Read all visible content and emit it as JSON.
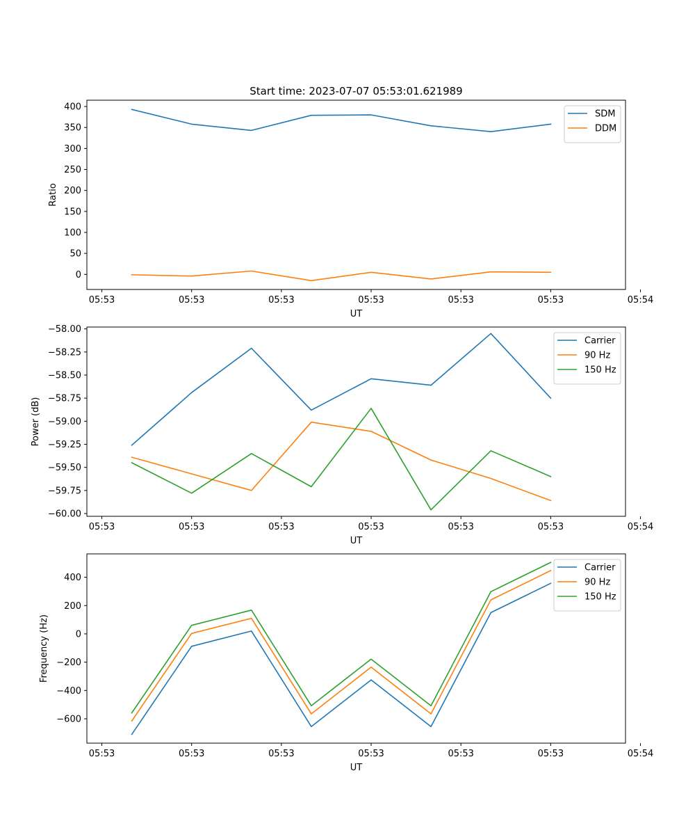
{
  "figure_title": "Start time: 2023-07-07 05:53:01.621989",
  "colors": {
    "blue": "#1f77b4",
    "orange": "#ff7f0e",
    "green": "#2ca02c",
    "axis": "#000000"
  },
  "chart_data": [
    {
      "type": "line",
      "title": "Start time: 2023-07-07 05:53:01.621989",
      "xlabel": "UT",
      "ylabel": "Ratio",
      "x": [
        1,
        2,
        3,
        4,
        5,
        6,
        7,
        8
      ],
      "xlim": [
        0.25,
        9.25
      ],
      "xticks": [
        0.5,
        2,
        3.5,
        5,
        6.5,
        8,
        9.5
      ],
      "xtick_labels": [
        "05:53",
        "05:53",
        "05:53",
        "05:53",
        "05:53",
        "05:53",
        "05:54"
      ],
      "ylim": [
        -36,
        415
      ],
      "yticks": [
        0,
        50,
        100,
        150,
        200,
        250,
        300,
        350,
        400
      ],
      "ytick_labels": [
        "0",
        "50",
        "100",
        "150",
        "200",
        "250",
        "300",
        "350",
        "400"
      ],
      "legend": "top-right",
      "series": [
        {
          "name": "SDM",
          "color": "#1f77b4",
          "values": [
            393,
            358,
            343,
            379,
            380,
            354,
            340,
            358
          ]
        },
        {
          "name": "DDM",
          "color": "#ff7f0e",
          "values": [
            -1,
            -4,
            8,
            -15,
            5,
            -11,
            6,
            5
          ]
        }
      ]
    },
    {
      "type": "line",
      "title": "",
      "xlabel": "UT",
      "ylabel": "Power (dB)",
      "x": [
        1,
        2,
        3,
        4,
        5,
        6,
        7,
        8
      ],
      "xlim": [
        0.25,
        9.25
      ],
      "xticks": [
        0.5,
        2,
        3.5,
        5,
        6.5,
        8,
        9.5
      ],
      "xtick_labels": [
        "05:53",
        "05:53",
        "05:53",
        "05:53",
        "05:53",
        "05:53",
        "05:54"
      ],
      "ylim": [
        -60.03,
        -57.98
      ],
      "yticks": [
        -60.0,
        -59.75,
        -59.5,
        -59.25,
        -59.0,
        -58.75,
        -58.5,
        -58.25,
        -58.0
      ],
      "ytick_labels": [
        "−60.00",
        "−59.75",
        "−59.50",
        "−59.25",
        "−59.00",
        "−58.75",
        "−58.50",
        "−58.25",
        "−58.00"
      ],
      "legend": "top-right",
      "series": [
        {
          "name": "Carrier",
          "color": "#1f77b4",
          "values": [
            -59.26,
            -58.69,
            -58.21,
            -58.88,
            -58.54,
            -58.61,
            -58.05,
            -58.75
          ]
        },
        {
          "name": "90 Hz",
          "color": "#ff7f0e",
          "values": [
            -59.39,
            -59.57,
            -59.75,
            -59.01,
            -59.11,
            -59.42,
            -59.62,
            -59.86
          ]
        },
        {
          "name": "150 Hz",
          "color": "#2ca02c",
          "values": [
            -59.45,
            -59.78,
            -59.35,
            -59.71,
            -58.86,
            -59.96,
            -59.32,
            -59.6
          ]
        }
      ]
    },
    {
      "type": "line",
      "title": "",
      "xlabel": "UT",
      "ylabel": "Frequency (Hz)",
      "x": [
        1,
        2,
        3,
        4,
        5,
        6,
        7,
        8
      ],
      "xlim": [
        0.25,
        9.25
      ],
      "xticks": [
        0.5,
        2,
        3.5,
        5,
        6.5,
        8,
        9.5
      ],
      "xtick_labels": [
        "05:53",
        "05:53",
        "05:53",
        "05:53",
        "05:53",
        "05:53",
        "05:54"
      ],
      "ylim": [
        -772,
        565
      ],
      "yticks": [
        -600,
        -400,
        -200,
        0,
        200,
        400
      ],
      "ytick_labels": [
        "−600",
        "−400",
        "−200",
        "0",
        "200",
        "400"
      ],
      "legend": "top-right",
      "series": [
        {
          "name": "Carrier",
          "color": "#1f77b4",
          "values": [
            -710,
            -88,
            20,
            -655,
            -325,
            -655,
            150,
            357
          ]
        },
        {
          "name": "90 Hz",
          "color": "#ff7f0e",
          "values": [
            -615,
            3,
            110,
            -565,
            -235,
            -565,
            240,
            447
          ]
        },
        {
          "name": "150 Hz",
          "color": "#2ca02c",
          "values": [
            -558,
            60,
            168,
            -508,
            -178,
            -508,
            298,
            505
          ]
        }
      ]
    }
  ]
}
